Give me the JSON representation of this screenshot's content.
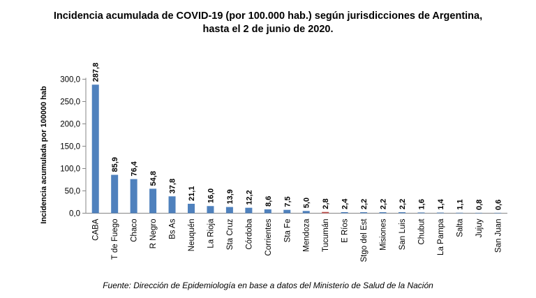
{
  "chart_data": {
    "type": "bar",
    "title_line1": "Incidencia acumulada de COVID-19 (por 100.000 hab.) según jurisdicciones de Argentina,",
    "title_line2": "hasta el 2 de junio de 2020.",
    "ylabel": "Incidencia acumulada por 100000 hab",
    "xlabel": "",
    "source": "Fuente: Dirección de Epidemiología en base a datos del Ministerio de Salud de la Nación",
    "ylim": [
      0,
      300
    ],
    "yticks": [
      "0,0",
      "50,0",
      "100,0",
      "150,0",
      "200,0",
      "250,0",
      "300,0"
    ],
    "grid": false,
    "legend": "none",
    "bar_color": "#4f81bd",
    "highlight_color": "#c0504d",
    "categories": [
      "CABA",
      "T de Fuego",
      "Chaco",
      "R Negro",
      "Bs As",
      "Neuquén",
      "La Rioja",
      "Sta Cruz",
      "Córdoba",
      "Corrientes",
      "Sta Fe",
      "Mendoza",
      "Tucumán",
      "E Ríos",
      "Stgo del Est",
      "Misiones",
      "San Luis",
      "Chubut",
      "La Pampa",
      "Salta",
      "Jujuy",
      "San Juan"
    ],
    "values": [
      287.8,
      85.9,
      76.4,
      54.8,
      37.8,
      21.1,
      16.0,
      13.9,
      12.2,
      8.6,
      7.5,
      5.0,
      2.8,
      2.4,
      2.2,
      2.2,
      2.2,
      1.6,
      1.4,
      1.1,
      0.8,
      0.6
    ],
    "data_labels": [
      "287,8",
      "85,9",
      "76,4",
      "54,8",
      "37,8",
      "21,1",
      "16,0",
      "13,9",
      "12,2",
      "8,6",
      "7,5",
      "5,0",
      "2,8",
      "2,4",
      "2,2",
      "2,2",
      "2,2",
      "1,6",
      "1,4",
      "1,1",
      "0,8",
      "0,6"
    ],
    "highlighted_category": "Tucumán"
  }
}
